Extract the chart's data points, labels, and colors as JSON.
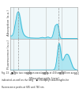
{
  "xlabel": "Wavelength (nm)",
  "ylabel_top": "Absorption (a.u.)",
  "ylabel_bottom": "Fluorescence (a.u.)",
  "xlim": [
    380,
    800
  ],
  "xticks": [
    400,
    500,
    600,
    700,
    800
  ],
  "xgrid_lines": [
    400,
    500,
    600,
    700,
    800
  ],
  "fill_color": "#a8e4f0",
  "line_color": "#30b8d8",
  "bg_color": "#f0f8fa",
  "vline_color": "#bbbbbb",
  "vlines_dashed": [
    430,
    680
  ],
  "caption_line1": "Fig. 13.   ● The two excitation wavelengths at 430 and 680 nm are",
  "caption_line2": "indicated, as well as the long    ● Chlorophyll wavelengths for",
  "caption_line3": "fluorescence peaks at 685 and 740 nm."
}
